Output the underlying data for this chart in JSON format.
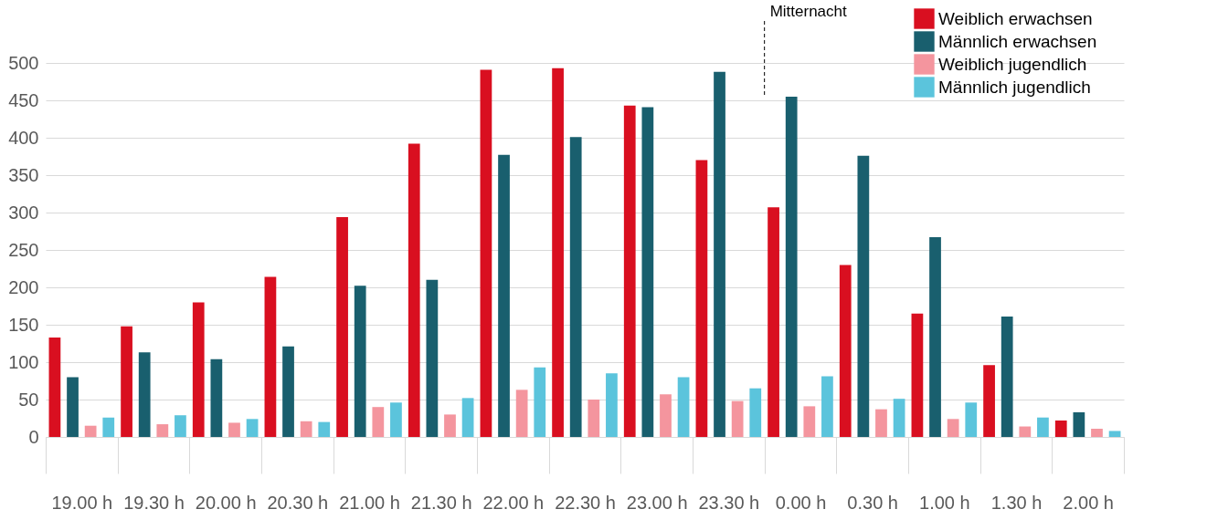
{
  "chart_data": {
    "type": "bar",
    "categories": [
      "19.00 h",
      "19.30 h",
      "20.00 h",
      "20.30 h",
      "21.00 h",
      "21.30 h",
      "22.00 h",
      "22.30 h",
      "23.00 h",
      "23.30 h",
      "0.00 h",
      "0.30 h",
      "1.00 h",
      "1.30 h",
      "2.00 h"
    ],
    "series": [
      {
        "name": "Weiblich erwachsen",
        "color": "#d90f20",
        "values": [
          133,
          148,
          180,
          214,
          294,
          392,
          491,
          493,
          443,
          370,
          307,
          230,
          165,
          96,
          22
        ]
      },
      {
        "name": "Männlich erwachsen",
        "color": "#195f6e",
        "values": [
          80,
          113,
          104,
          121,
          202,
          210,
          377,
          401,
          441,
          488,
          455,
          376,
          267,
          161,
          33
        ]
      },
      {
        "name": "Weiblich jugendlich",
        "color": "#f4959e",
        "values": [
          15,
          17,
          19,
          21,
          40,
          30,
          63,
          50,
          57,
          48,
          41,
          37,
          24,
          14,
          11
        ]
      },
      {
        "name": "Männlich jugendlich",
        "color": "#5bc4dc",
        "values": [
          26,
          29,
          24,
          20,
          46,
          52,
          93,
          85,
          80,
          65,
          81,
          51,
          46,
          26,
          8
        ]
      }
    ],
    "ylim": [
      0,
      500
    ],
    "yticks": [
      0,
      50,
      100,
      150,
      200,
      250,
      300,
      350,
      400,
      450,
      500
    ],
    "grid": "y",
    "legend": "top right",
    "ref_lines": [
      {
        "axis": "x",
        "value": "0.00 h",
        "label": "Mitternacht",
        "line_style": "dashed"
      }
    ]
  }
}
